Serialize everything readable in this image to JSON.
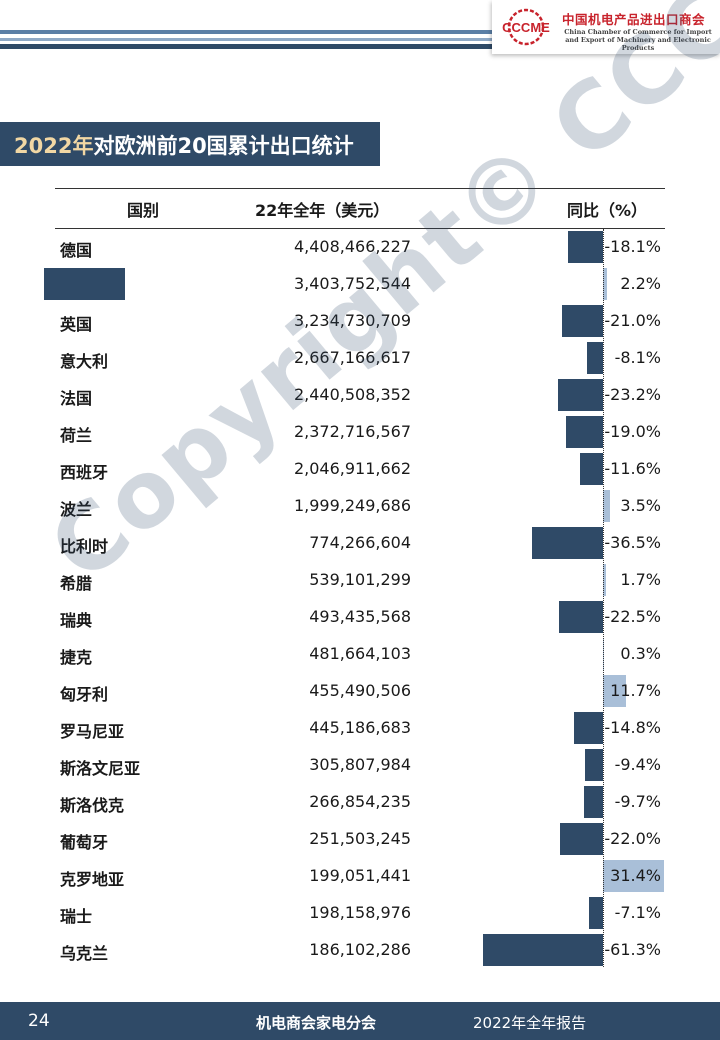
{
  "header": {
    "logo_mark": "CCCME",
    "logo_cn": "中国机电产品进出口商会",
    "logo_en_line1": "China Chamber of Commerce for Import",
    "logo_en_line2": "and Export of Machinery and Electronic Products",
    "brand_color": "#c8232c"
  },
  "title": {
    "year_part": "2022年",
    "rest": "对欧洲前20国累计出口统计"
  },
  "table": {
    "headers": {
      "country": "国别",
      "value": "22年全年（美元）",
      "yoy": "同比（%）"
    },
    "rows": [
      {
        "country": "德国",
        "value": "4,408,466,227",
        "yoy": "-18.1%",
        "yoy_num": -18.1
      },
      {
        "country": "",
        "value": "3,403,752,544",
        "yoy": "2.2%",
        "yoy_num": 2.2,
        "redacted": true
      },
      {
        "country": "英国",
        "value": "3,234,730,709",
        "yoy": "-21.0%",
        "yoy_num": -21.0
      },
      {
        "country": "意大利",
        "value": "2,667,166,617",
        "yoy": "-8.1%",
        "yoy_num": -8.1
      },
      {
        "country": "法国",
        "value": "2,440,508,352",
        "yoy": "-23.2%",
        "yoy_num": -23.2
      },
      {
        "country": "荷兰",
        "value": "2,372,716,567",
        "yoy": "-19.0%",
        "yoy_num": -19.0
      },
      {
        "country": "西班牙",
        "value": "2,046,911,662",
        "yoy": "-11.6%",
        "yoy_num": -11.6
      },
      {
        "country": "波兰",
        "value": "1,999,249,686",
        "yoy": "3.5%",
        "yoy_num": 3.5
      },
      {
        "country": "比利时",
        "value": "774,266,604",
        "yoy": "-36.5%",
        "yoy_num": -36.5
      },
      {
        "country": "希腊",
        "value": "539,101,299",
        "yoy": "1.7%",
        "yoy_num": 1.7
      },
      {
        "country": "瑞典",
        "value": "493,435,568",
        "yoy": "-22.5%",
        "yoy_num": -22.5
      },
      {
        "country": "捷克",
        "value": "481,664,103",
        "yoy": "0.3%",
        "yoy_num": 0.3
      },
      {
        "country": "匈牙利",
        "value": "455,490,506",
        "yoy": "11.7%",
        "yoy_num": 11.7
      },
      {
        "country": "罗马尼亚",
        "value": "445,186,683",
        "yoy": "-14.8%",
        "yoy_num": -14.8
      },
      {
        "country": "斯洛文尼亚",
        "value": "305,807,984",
        "yoy": "-9.4%",
        "yoy_num": -9.4
      },
      {
        "country": "斯洛伐克",
        "value": "266,854,235",
        "yoy": "-9.7%",
        "yoy_num": -9.7
      },
      {
        "country": "葡萄牙",
        "value": "251,503,245",
        "yoy": "-22.0%",
        "yoy_num": -22.0
      },
      {
        "country": "克罗地亚",
        "value": "199,051,441",
        "yoy": "31.4%",
        "yoy_num": 31.4
      },
      {
        "country": "瑞士",
        "value": "198,158,976",
        "yoy": "-7.1%",
        "yoy_num": -7.1
      },
      {
        "country": "乌克兰",
        "value": "186,102,286",
        "yoy": "-61.3%",
        "yoy_num": -61.3
      }
    ],
    "neg_bar_color": "#2f4a67",
    "pos_bar_color": "#a9bfd8"
  },
  "watermark": "Copyright© CCCME",
  "footer": {
    "page": "24",
    "center": "机电商会家电分会",
    "right": "2022年全年报告"
  }
}
